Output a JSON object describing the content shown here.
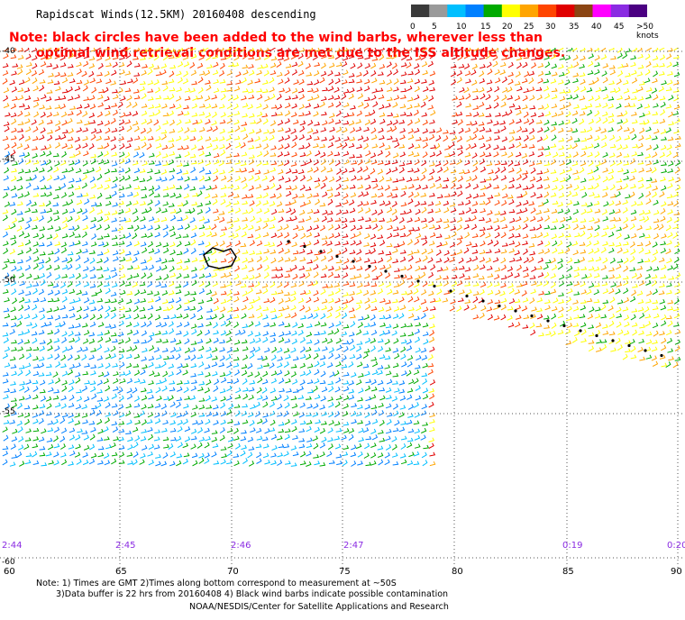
{
  "title": "Rapidscat Winds(12.5KM) 20160408 descending",
  "note": {
    "line1": "Note: black circles have been added to the wind barbs, wherever less than",
    "line2": "optimal wind retrieval conditions are met due to the ISS altitude changes."
  },
  "colorbar": {
    "labels": [
      "0",
      "5",
      "10",
      "15",
      "20",
      "25",
      "30",
      "35",
      "40",
      "45",
      ">50 knots"
    ],
    "colors": [
      "#3a3a3a",
      "#9a9a9a",
      "#00bfff",
      "#0080ff",
      "#00aa00",
      "#ffff00",
      "#ffa500",
      "#ff4500",
      "#e00000",
      "#8b4513",
      "#ff00ff",
      "#8a2be2",
      "#4b0082"
    ]
  },
  "map": {
    "lat_labels": [
      "-40",
      "-45",
      "-50",
      "-55",
      "-60"
    ],
    "lon_labels": [
      "60",
      "65",
      "70",
      "75",
      "80",
      "85",
      "90"
    ],
    "time_labels": [
      "2:44",
      "2:45",
      "2:46",
      "2:47",
      "0:19",
      "0:20"
    ]
  },
  "footer": {
    "line1": "Note: 1) Times are GMT 2)Times along bottom correspond to measurement at ~50S",
    "line2": "3)Data buffer is 22 hrs from 20160408 4) Black wind barbs indicate possible contamination",
    "line3": "NOAA/NESDIS/Center for Satellite Applications and Research"
  }
}
